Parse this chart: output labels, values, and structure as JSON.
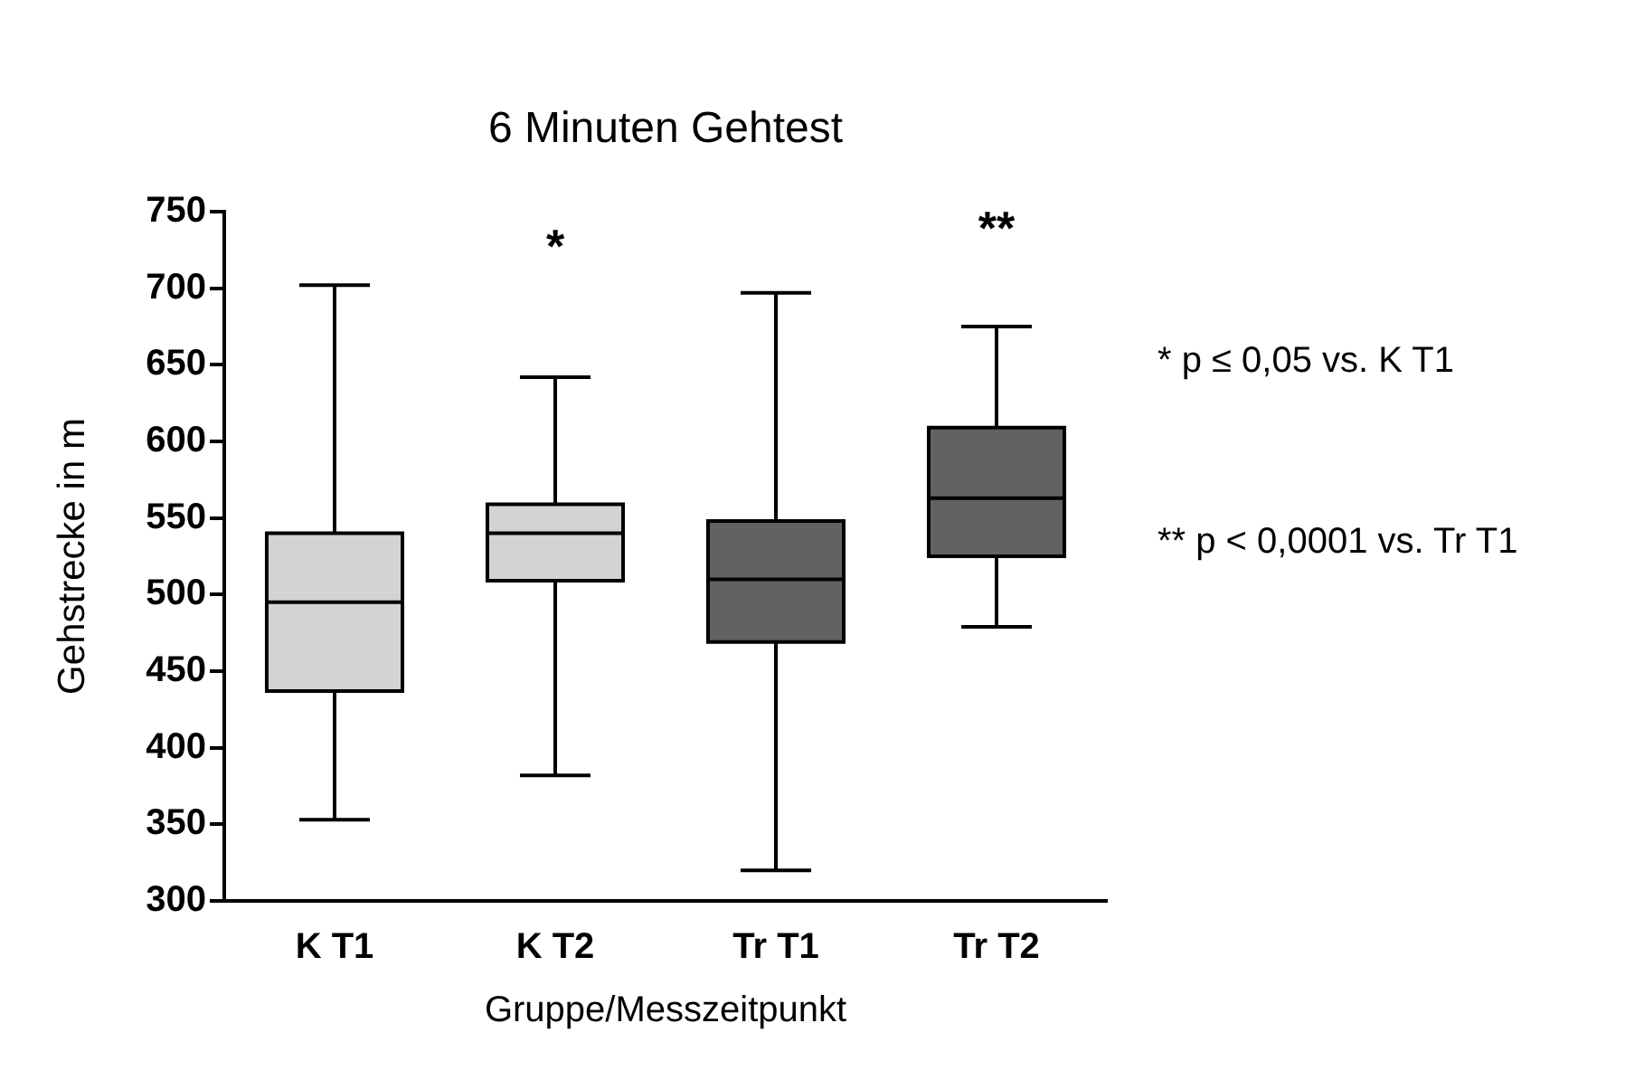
{
  "chart_data": {
    "type": "box",
    "title": "6 Minuten Gehtest",
    "xlabel": "Gruppe/Messzeitpunkt",
    "ylabel": "Gehstrecke in m",
    "categories": [
      "K T1",
      "K T2",
      "Tr T1",
      "Tr T2"
    ],
    "colors": [
      "#d3d3d3",
      "#d3d3d3",
      "#626262",
      "#626262"
    ],
    "boxes": [
      {
        "low": 353,
        "q1": 437,
        "median": 495,
        "q3": 540,
        "high": 702
      },
      {
        "low": 382,
        "q1": 509,
        "median": 540,
        "q3": 559,
        "high": 642
      },
      {
        "low": 320,
        "q1": 469,
        "median": 510,
        "q3": 548,
        "high": 697
      },
      {
        "low": 479,
        "q1": 525,
        "median": 563,
        "q3": 609,
        "high": 675
      }
    ],
    "ylim": [
      300,
      750
    ],
    "yticks": [
      300,
      350,
      400,
      450,
      500,
      550,
      600,
      650,
      700,
      750
    ],
    "grid": false,
    "legend": false,
    "annotations": [
      "*",
      "**",
      "* p ≤ 0,05 vs. K T1",
      "** p < 0,0001 vs. Tr T1"
    ]
  }
}
